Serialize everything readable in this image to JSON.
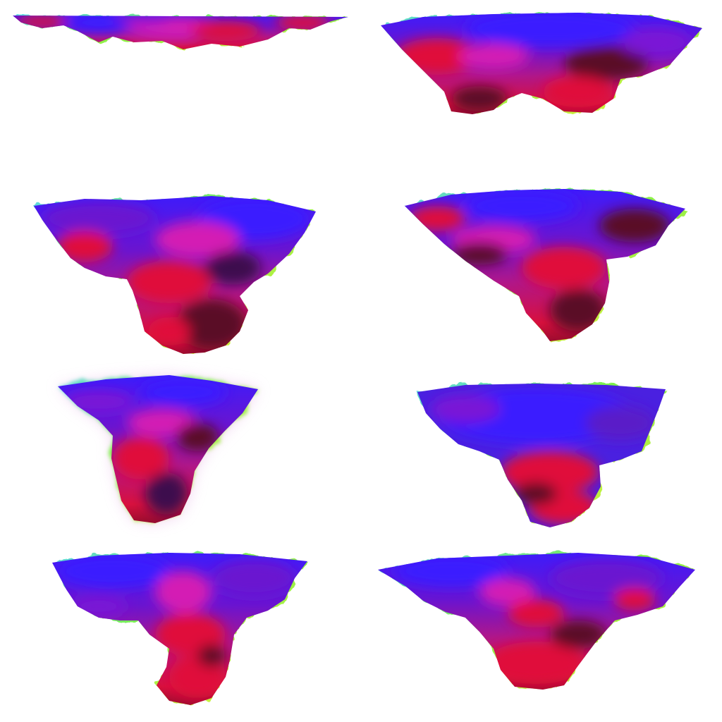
{
  "background": "#ffffff",
  "palette": {
    "outline_green": "#7cf04a",
    "outline_yellow": "#f2f23a",
    "outline_cyan": "#5ad6e8",
    "blue": "#3a1cff",
    "violet": "#7a14d6",
    "magenta": "#d41ab4",
    "crimson": "#e0103a",
    "maroon": "#5a0828",
    "plum": "#3e0a4e"
  },
  "grid": {
    "columns": 2,
    "rows": 4
  },
  "clouds": [
    {
      "id": "cloud-1",
      "variant": "flat thin strip",
      "glow": false
    },
    {
      "id": "cloud-2",
      "variant": "wide shallow",
      "glow": false
    },
    {
      "id": "cloud-3",
      "variant": "wide with deep center lobe",
      "glow": false
    },
    {
      "id": "cloud-4",
      "variant": "wide with right-center lobe",
      "glow": false
    },
    {
      "id": "cloud-5",
      "variant": "narrow funnel",
      "glow": true
    },
    {
      "id": "cloud-6",
      "variant": "wide with short center lobe",
      "glow": false
    },
    {
      "id": "cloud-7",
      "variant": "wide with long center stem",
      "glow": false
    },
    {
      "id": "cloud-8",
      "variant": "wide with broad lower body",
      "glow": false
    }
  ]
}
